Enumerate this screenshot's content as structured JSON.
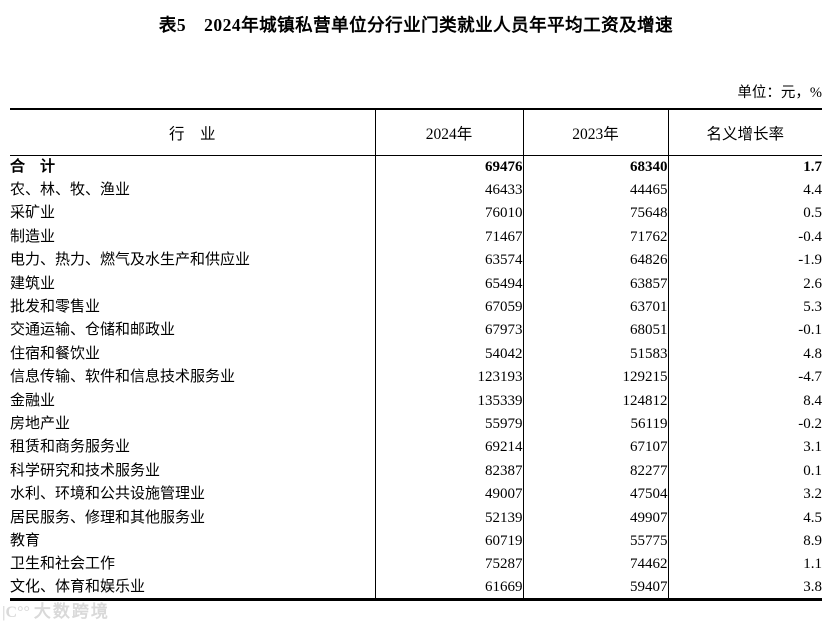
{
  "page": {
    "title": "表5　2024年城镇私营单位分行业门类就业人员年平均工资及增速",
    "unit_note": "单位：元，%",
    "watermark_logo": "|C°°",
    "watermark_text": "大数跨境"
  },
  "table": {
    "headers": [
      "行　业",
      "2024年",
      "2023年",
      "名义增长率"
    ],
    "rows": [
      {
        "industry": "合　计",
        "y2024": "69476",
        "y2023": "68340",
        "growth": "1.7",
        "bold": true
      },
      {
        "industry": "农、林、牧、渔业",
        "y2024": "46433",
        "y2023": "44465",
        "growth": "4.4"
      },
      {
        "industry": "采矿业",
        "y2024": "76010",
        "y2023": "75648",
        "growth": "0.5"
      },
      {
        "industry": "制造业",
        "y2024": "71467",
        "y2023": "71762",
        "growth": "-0.4"
      },
      {
        "industry": "电力、热力、燃气及水生产和供应业",
        "y2024": "63574",
        "y2023": "64826",
        "growth": "-1.9"
      },
      {
        "industry": "建筑业",
        "y2024": "65494",
        "y2023": "63857",
        "growth": "2.6"
      },
      {
        "industry": "批发和零售业",
        "y2024": "67059",
        "y2023": "63701",
        "growth": "5.3"
      },
      {
        "industry": "交通运输、仓储和邮政业",
        "y2024": "67973",
        "y2023": "68051",
        "growth": "-0.1"
      },
      {
        "industry": "住宿和餐饮业",
        "y2024": "54042",
        "y2023": "51583",
        "growth": "4.8"
      },
      {
        "industry": "信息传输、软件和信息技术服务业",
        "y2024": "123193",
        "y2023": "129215",
        "growth": "-4.7"
      },
      {
        "industry": "金融业",
        "y2024": "135339",
        "y2023": "124812",
        "growth": "8.4"
      },
      {
        "industry": "房地产业",
        "y2024": "55979",
        "y2023": "56119",
        "growth": "-0.2"
      },
      {
        "industry": "租赁和商务服务业",
        "y2024": "69214",
        "y2023": "67107",
        "growth": "3.1"
      },
      {
        "industry": "科学研究和技术服务业",
        "y2024": "82387",
        "y2023": "82277",
        "growth": "0.1"
      },
      {
        "industry": "水利、环境和公共设施管理业",
        "y2024": "49007",
        "y2023": "47504",
        "growth": "3.2"
      },
      {
        "industry": "居民服务、修理和其他服务业",
        "y2024": "52139",
        "y2023": "49907",
        "growth": "4.5"
      },
      {
        "industry": "教育",
        "y2024": "60719",
        "y2023": "55775",
        "growth": "8.9"
      },
      {
        "industry": "卫生和社会工作",
        "y2024": "75287",
        "y2023": "74462",
        "growth": "1.1"
      },
      {
        "industry": "文化、体育和娱乐业",
        "y2024": "61669",
        "y2023": "59407",
        "growth": "3.8"
      }
    ]
  }
}
